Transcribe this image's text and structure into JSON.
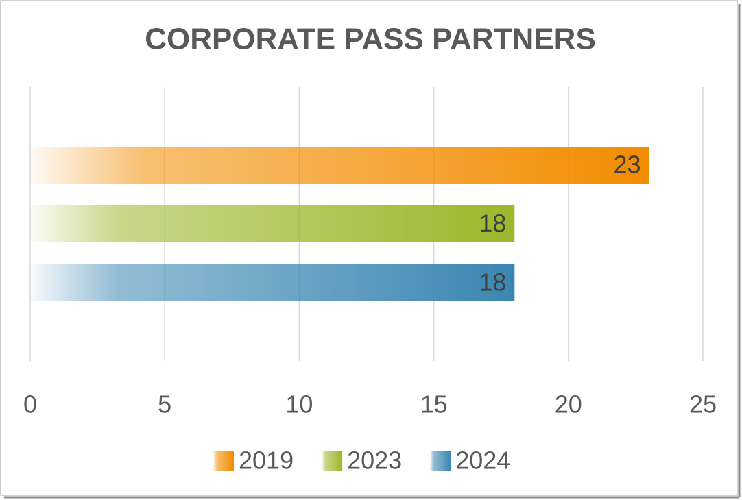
{
  "chart_data": {
    "type": "bar",
    "orientation": "horizontal",
    "title": "CORPORATE PASS PARTNERS",
    "categories": [
      null
    ],
    "series": [
      {
        "name": "2019",
        "color": "#f28c00",
        "values": [
          23
        ]
      },
      {
        "name": "2023",
        "color": "#9db62a",
        "values": [
          18
        ]
      },
      {
        "name": "2024",
        "color": "#3a86b2",
        "values": [
          18
        ]
      }
    ],
    "xlim": [
      0,
      25
    ],
    "xticks": [
      0,
      5,
      10,
      15,
      20,
      25
    ],
    "grid": true,
    "legend": "bottom"
  }
}
